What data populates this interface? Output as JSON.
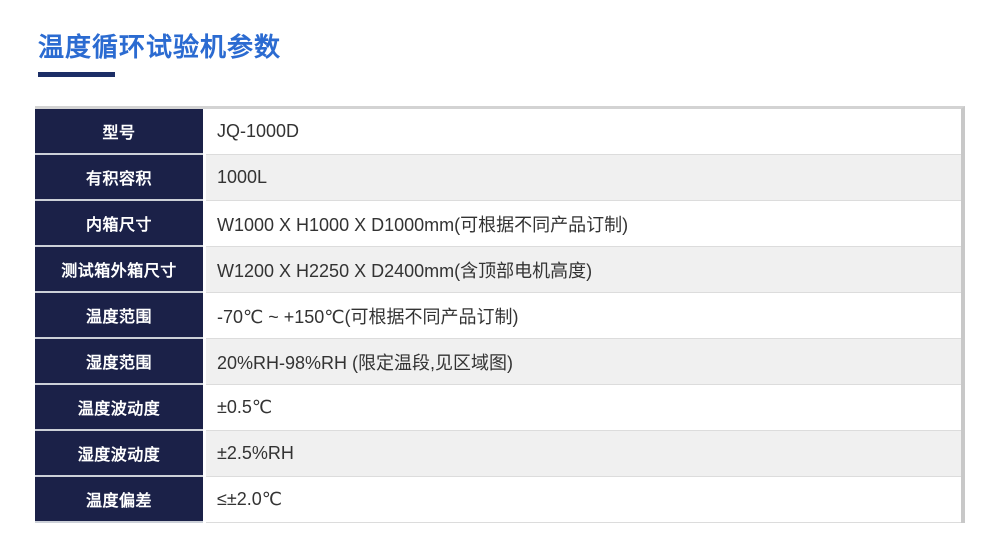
{
  "page": {
    "title": "温度循环试验机参数"
  },
  "table": {
    "rows": [
      {
        "label": "型号",
        "value": "JQ-1000D"
      },
      {
        "label": "有积容积",
        "value": "1000L"
      },
      {
        "label": "内箱尺寸",
        "value": "W1000 X H1000 X D1000mm(可根据不同产品订制)"
      },
      {
        "label": "测试箱外箱尺寸",
        "value": "W1200 X H2250 X D2400mm(含顶部电机高度)"
      },
      {
        "label": "温度范围",
        "value": "-70℃ ~ +150℃(可根据不同产品订制)"
      },
      {
        "label": "湿度范围",
        "value": "20%RH-98%RH (限定温段,见区域图)"
      },
      {
        "label": "温度波动度",
        "value": "±0.5℃"
      },
      {
        "label": "湿度波动度",
        "value": "±2.5%RH"
      },
      {
        "label": "温度偏差",
        "value": "≤±2.0℃"
      }
    ]
  },
  "colors": {
    "title_blue": "#2b6bd1",
    "title_underline_navy": "#1c2e66",
    "label_column_navy": "#1b2148",
    "row_alt_gray": "#f0f0f0",
    "table_border_gray": "#c8c8c8",
    "value_text": "#333333"
  }
}
